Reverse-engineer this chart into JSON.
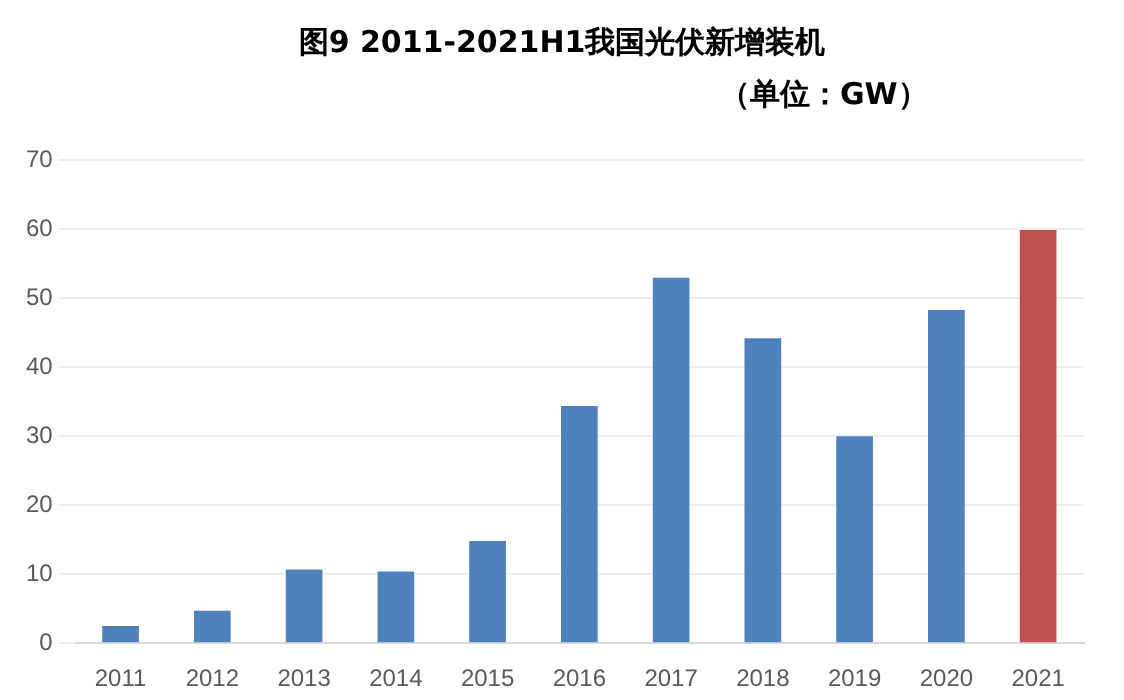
{
  "chart_data": {
    "type": "bar",
    "title": "图9  2011-2021H1我国光伏新增装机",
    "subtitle": "（单位：GW）",
    "categories": [
      "2011",
      "2012",
      "2013",
      "2014",
      "2015",
      "2016",
      "2017",
      "2018",
      "2019",
      "2020",
      "2021"
    ],
    "values": [
      2.5,
      4.7,
      10.7,
      10.4,
      14.8,
      34.4,
      53,
      44.2,
      30,
      48.3,
      59.9
    ],
    "colors": [
      "#4f81bd",
      "#4f81bd",
      "#4f81bd",
      "#4f81bd",
      "#4f81bd",
      "#4f81bd",
      "#4f81bd",
      "#4f81bd",
      "#4f81bd",
      "#4f81bd",
      "#c0504d"
    ],
    "ylim": [
      0,
      70
    ],
    "yticks": [
      0,
      10,
      20,
      30,
      40,
      50,
      60,
      70
    ],
    "grid": "y",
    "legend": false
  }
}
